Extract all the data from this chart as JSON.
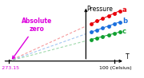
{
  "title": "Pressure",
  "xlabel_right": "T",
  "xlabel_bottom": "100 (Celsius)",
  "abs_zero_label": "Absolute\nzero",
  "abs_zero_value": -273.15,
  "abs_zero_text": "- 273.15",
  "lines": [
    {
      "label": "a",
      "slope": 0.00135,
      "color": "#e8000a"
    },
    {
      "label": "b",
      "slope": 0.00105,
      "color": "#1a6fdd"
    },
    {
      "label": "c",
      "slope": 0.00078,
      "color": "#10a030"
    }
  ],
  "dot_t_values": [
    20,
    40,
    60,
    80,
    100,
    120
  ],
  "label_color": "#dd00dd",
  "background_color": "#ffffff",
  "xlim": [
    -300,
    145
  ],
  "ylim": [
    -0.08,
    0.62
  ]
}
